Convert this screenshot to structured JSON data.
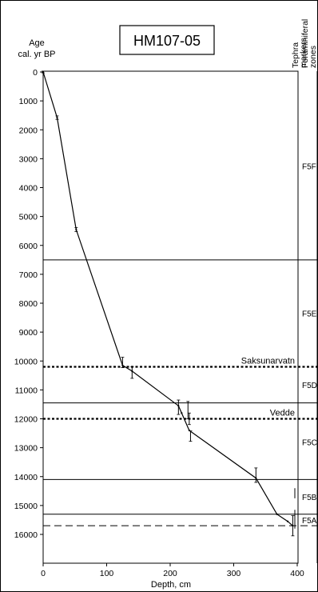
{
  "chart_data": {
    "type": "line",
    "title": "HM107-05",
    "xlabel": "Depth, cm",
    "ylabel_lines": [
      "Age",
      "cal. yr BP"
    ],
    "xlim": [
      0,
      400
    ],
    "ylim": [
      0,
      16000
    ],
    "x_ticks": [
      "0",
      "100",
      "200",
      "300",
      "400"
    ],
    "y_ticks": [
      "0",
      "1000",
      "2000",
      "3000",
      "4000",
      "5000",
      "6000",
      "7000",
      "8000",
      "9000",
      "10000",
      "11000",
      "12000",
      "13000",
      "14000",
      "15000",
      "16000"
    ],
    "y_reversed": true,
    "column_headers": {
      "tephra": [
        "Tephra",
        "markers"
      ],
      "zones": [
        "Foraminiferal",
        "zones"
      ]
    },
    "series": [
      {
        "x": [
          0,
          22,
          52,
          125,
          140,
          213,
          218,
          230,
          335,
          368,
          385,
          393
        ],
        "y": [
          0,
          1580,
          5450,
          10150,
          10350,
          11550,
          11800,
          12400,
          14050,
          15300,
          15550,
          15700
        ]
      }
    ],
    "dated_points": [
      {
        "x": 0,
        "y": 0,
        "err": 30
      },
      {
        "x": 22,
        "y": 1580,
        "err": 60
      },
      {
        "x": 52,
        "y": 5450,
        "err": 70
      },
      {
        "x": 125,
        "y": 10050,
        "err": 180
      },
      {
        "x": 140,
        "y": 10400,
        "err": 200
      },
      {
        "x": 213,
        "y": 11600,
        "err": 250
      },
      {
        "x": 228,
        "y": 11700,
        "err": 300
      },
      {
        "x": 230,
        "y": 12000,
        "err": 200
      },
      {
        "x": 232,
        "y": 12600,
        "err": 180
      },
      {
        "x": 335,
        "y": 13950,
        "err": 250
      },
      {
        "x": 393,
        "y": 15700,
        "err": 350
      }
    ],
    "horizontal_lines": [
      {
        "y": 6500,
        "style": "solid"
      },
      {
        "y": 10200,
        "style": "dotted",
        "label": "Saksunarvatn"
      },
      {
        "y": 11450,
        "style": "solid"
      },
      {
        "y": 12000,
        "style": "dotted",
        "label": "Vedde"
      },
      {
        "y": 14100,
        "style": "solid"
      },
      {
        "y": 15300,
        "style": "solid"
      },
      {
        "y": 15700,
        "style": "dashed"
      }
    ],
    "zones": [
      {
        "name": "F5F",
        "y_mid": 3250
      },
      {
        "name": "F5E",
        "y_mid": 8350
      },
      {
        "name": "F5D",
        "y_mid": 10830
      },
      {
        "name": "F5C",
        "y_mid": 12800
      },
      {
        "name": "F5B",
        "y_mid": 14700
      },
      {
        "name": "F5A",
        "y_mid": 15500
      }
    ],
    "right_markers": [
      {
        "y_from": 14400,
        "y_to": 14750
      },
      {
        "y_from": 15150,
        "y_to": 15800
      }
    ],
    "legend": "none",
    "grid": false
  }
}
